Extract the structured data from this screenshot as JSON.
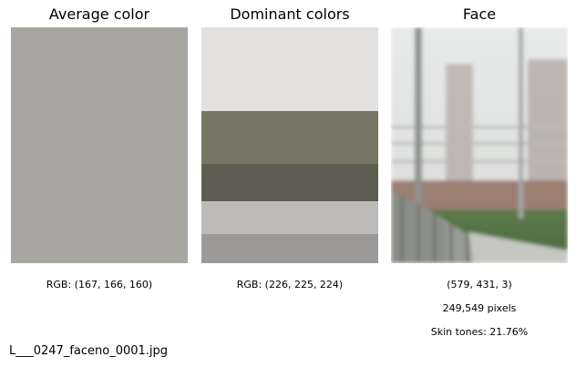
{
  "panels": {
    "average": {
      "title": "Average color",
      "color": "#a7a6a0",
      "caption": "RGB: (167, 166, 160)"
    },
    "dominant": {
      "title": "Dominant colors",
      "swatches": [
        {
          "color": "#e2e1e0",
          "fraction": 0.355
        },
        {
          "color": "#777665",
          "fraction": 0.225
        },
        {
          "color": "#5d5d51",
          "fraction": 0.16
        },
        {
          "color": "#bcbbb9",
          "fraction": 0.14
        },
        {
          "color": "#9b9a98",
          "fraction": 0.12
        }
      ],
      "caption": "RGB: (226, 225, 224)"
    },
    "face": {
      "title": "Face",
      "caption_dims": "(579, 431, 3)",
      "caption_pixels": "249,549 pixels",
      "caption_skin": "Skin tones: 21.76%"
    }
  },
  "filename": "L___0247_faceno_0001.jpg"
}
